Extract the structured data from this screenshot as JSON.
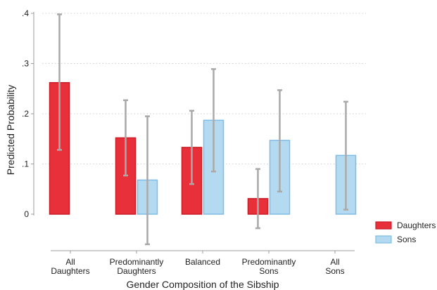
{
  "chart_data": {
    "type": "bar",
    "xlabel": "Gender Composition of the Sibship",
    "ylabel": "Predicted Probability",
    "ylim": [
      0,
      0.4
    ],
    "y_ticks": [
      0,
      0.1,
      0.2,
      0.3,
      0.4
    ],
    "y_tick_labels": [
      "0",
      ".1",
      ".2",
      ".3",
      ".4"
    ],
    "grid": true,
    "legend_position": "bottom-right",
    "categories": [
      [
        "All",
        "Daughters"
      ],
      [
        "Predominantly",
        "Daughters"
      ],
      [
        "Balanced"
      ],
      [
        "Predominantly",
        "Sons"
      ],
      [
        "All",
        "Sons"
      ]
    ],
    "series": [
      {
        "name": "Daughters",
        "color": "#e8303a",
        "edge": "#c81e28",
        "values": [
          0.262,
          0.152,
          0.133,
          0.031,
          null
        ],
        "ci_low": [
          0.128,
          0.077,
          0.06,
          -0.028,
          null
        ],
        "ci_high": [
          0.398,
          0.227,
          0.206,
          0.09,
          null
        ]
      },
      {
        "name": "Sons",
        "color": "#b3daf1",
        "edge": "#7fbde6",
        "values": [
          null,
          0.068,
          0.187,
          0.147,
          0.117
        ],
        "ci_low": [
          null,
          -0.06,
          0.085,
          0.045,
          0.009
        ],
        "ci_high": [
          null,
          0.195,
          0.289,
          0.247,
          0.224
        ]
      }
    ],
    "errorbar_color": "#a9a9a9"
  }
}
